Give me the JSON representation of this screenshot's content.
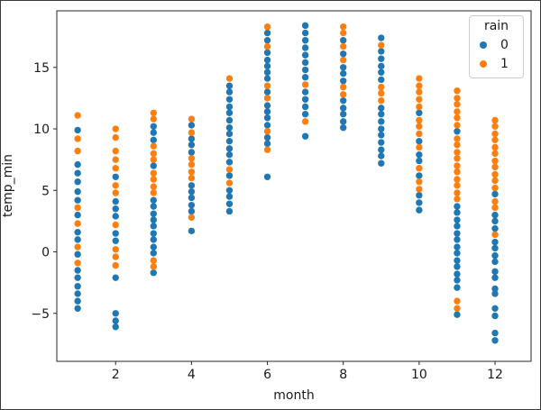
{
  "chart_data": {
    "type": "scatter",
    "title": "",
    "xlabel": "month",
    "ylabel": "temp_min",
    "xlim": [
      0.45,
      12.95
    ],
    "ylim": [
      -8.9,
      19.6
    ],
    "grid": false,
    "xticks": [
      2,
      4,
      6,
      8,
      10,
      12
    ],
    "xtick_labels": [
      "2",
      "4",
      "6",
      "8",
      "10",
      "12"
    ],
    "yticks": [
      -5,
      0,
      5,
      10,
      15
    ],
    "ytick_labels": [
      "−5",
      "0",
      "5",
      "10",
      "15"
    ],
    "legend": {
      "title": "rain",
      "position": "upper right",
      "entries": [
        {
          "label": "0",
          "color": "#1f77b4"
        },
        {
          "label": "1",
          "color": "#ff7f0e"
        }
      ]
    },
    "series": [
      {
        "name": "0",
        "color": "#1f77b4",
        "points": [
          [
            1,
            9.9
          ],
          [
            1,
            7.1
          ],
          [
            1,
            6.4
          ],
          [
            1,
            5.7
          ],
          [
            1,
            4.9
          ],
          [
            1,
            4.2
          ],
          [
            1,
            3.0
          ],
          [
            1,
            1.6
          ],
          [
            1,
            1.0
          ],
          [
            1,
            -0.2
          ],
          [
            1,
            -1.5
          ],
          [
            1,
            -2.1
          ],
          [
            1,
            -2.8
          ],
          [
            1,
            -3.4
          ],
          [
            1,
            -4.0
          ],
          [
            1,
            -4.6
          ],
          [
            2,
            6.1
          ],
          [
            2,
            4.1
          ],
          [
            2,
            3.5
          ],
          [
            2,
            2.9
          ],
          [
            2,
            1.5
          ],
          [
            2,
            0.9
          ],
          [
            2,
            -2.1
          ],
          [
            2,
            -5.0
          ],
          [
            2,
            -5.6
          ],
          [
            2,
            -6.1
          ],
          [
            3,
            10.2
          ],
          [
            3,
            9.7
          ],
          [
            3,
            9.1
          ],
          [
            3,
            7.0
          ],
          [
            3,
            4.2
          ],
          [
            3,
            3.7
          ],
          [
            3,
            3.1
          ],
          [
            3,
            2.6
          ],
          [
            3,
            2.1
          ],
          [
            3,
            1.5
          ],
          [
            3,
            1.0
          ],
          [
            3,
            0.4
          ],
          [
            3,
            -0.1
          ],
          [
            3,
            -1.7
          ],
          [
            4,
            10.3
          ],
          [
            4,
            9.2
          ],
          [
            4,
            8.7
          ],
          [
            4,
            8.1
          ],
          [
            4,
            5.4
          ],
          [
            4,
            4.9
          ],
          [
            4,
            4.4
          ],
          [
            4,
            3.8
          ],
          [
            4,
            3.3
          ],
          [
            4,
            1.7
          ],
          [
            5,
            13.5
          ],
          [
            5,
            13.0
          ],
          [
            5,
            12.4
          ],
          [
            5,
            11.8
          ],
          [
            5,
            11.3
          ],
          [
            5,
            10.7
          ],
          [
            5,
            10.1
          ],
          [
            5,
            9.6
          ],
          [
            5,
            9.0
          ],
          [
            5,
            8.4
          ],
          [
            5,
            7.9
          ],
          [
            5,
            7.3
          ],
          [
            5,
            6.2
          ],
          [
            5,
            5.0
          ],
          [
            5,
            4.5
          ],
          [
            5,
            3.9
          ],
          [
            5,
            3.3
          ],
          [
            6,
            17.8
          ],
          [
            6,
            17.2
          ],
          [
            6,
            16.2
          ],
          [
            6,
            15.6
          ],
          [
            6,
            15.1
          ],
          [
            6,
            14.6
          ],
          [
            6,
            14.1
          ],
          [
            6,
            13.0
          ],
          [
            6,
            11.9
          ],
          [
            6,
            11.4
          ],
          [
            6,
            10.9
          ],
          [
            6,
            10.3
          ],
          [
            6,
            9.3
          ],
          [
            6,
            8.8
          ],
          [
            6,
            6.1
          ],
          [
            7,
            18.4
          ],
          [
            7,
            17.8
          ],
          [
            7,
            17.2
          ],
          [
            7,
            16.6
          ],
          [
            7,
            16.0
          ],
          [
            7,
            15.4
          ],
          [
            7,
            14.8
          ],
          [
            7,
            14.2
          ],
          [
            7,
            13.0
          ],
          [
            7,
            12.4
          ],
          [
            7,
            11.8
          ],
          [
            7,
            11.2
          ],
          [
            7,
            9.4
          ],
          [
            8,
            17.2
          ],
          [
            8,
            16.1
          ],
          [
            8,
            15.0
          ],
          [
            8,
            14.5
          ],
          [
            8,
            13.9
          ],
          [
            8,
            12.3
          ],
          [
            8,
            11.7
          ],
          [
            8,
            11.2
          ],
          [
            8,
            10.6
          ],
          [
            8,
            10.1
          ],
          [
            9,
            17.4
          ],
          [
            9,
            16.3
          ],
          [
            9,
            15.7
          ],
          [
            9,
            15.1
          ],
          [
            9,
            14.6
          ],
          [
            9,
            14.0
          ],
          [
            9,
            11.7
          ],
          [
            9,
            11.2
          ],
          [
            9,
            10.6
          ],
          [
            9,
            10.0
          ],
          [
            9,
            9.5
          ],
          [
            9,
            8.9
          ],
          [
            9,
            8.3
          ],
          [
            9,
            7.8
          ],
          [
            9,
            7.2
          ],
          [
            10,
            11.3
          ],
          [
            10,
            9.0
          ],
          [
            10,
            7.9
          ],
          [
            10,
            7.4
          ],
          [
            10,
            6.2
          ],
          [
            10,
            4.6
          ],
          [
            10,
            4.0
          ],
          [
            10,
            3.4
          ],
          [
            11,
            9.8
          ],
          [
            11,
            3.7
          ],
          [
            11,
            3.2
          ],
          [
            11,
            2.6
          ],
          [
            11,
            2.1
          ],
          [
            11,
            1.5
          ],
          [
            11,
            1.0
          ],
          [
            11,
            0.4
          ],
          [
            11,
            -0.1
          ],
          [
            11,
            -0.7
          ],
          [
            11,
            -1.2
          ],
          [
            11,
            -1.8
          ],
          [
            11,
            -2.3
          ],
          [
            11,
            -2.9
          ],
          [
            11,
            -5.1
          ],
          [
            12,
            4.7
          ],
          [
            12,
            3.0
          ],
          [
            12,
            2.5
          ],
          [
            12,
            1.9
          ],
          [
            12,
            0.8
          ],
          [
            12,
            0.3
          ],
          [
            12,
            -0.3
          ],
          [
            12,
            -0.8
          ],
          [
            12,
            -1.6
          ],
          [
            12,
            -2.1
          ],
          [
            12,
            -3.0
          ],
          [
            12,
            -3.4
          ],
          [
            12,
            -4.6
          ],
          [
            12,
            -5.2
          ],
          [
            12,
            -6.6
          ],
          [
            12,
            -7.2
          ]
        ]
      },
      {
        "name": "1",
        "color": "#ff7f0e",
        "points": [
          [
            1,
            11.1
          ],
          [
            1,
            9.2
          ],
          [
            1,
            8.2
          ],
          [
            1,
            3.6
          ],
          [
            1,
            2.3
          ],
          [
            1,
            0.4
          ],
          [
            1,
            -0.9
          ],
          [
            2,
            10.0
          ],
          [
            2,
            9.3
          ],
          [
            2,
            8.2
          ],
          [
            2,
            7.5
          ],
          [
            2,
            6.8
          ],
          [
            2,
            5.4
          ],
          [
            2,
            4.8
          ],
          [
            2,
            2.2
          ],
          [
            2,
            0.2
          ],
          [
            2,
            -0.4
          ],
          [
            2,
            -1.1
          ],
          [
            3,
            11.3
          ],
          [
            3,
            10.8
          ],
          [
            3,
            8.6
          ],
          [
            3,
            8.0
          ],
          [
            3,
            7.5
          ],
          [
            3,
            6.4
          ],
          [
            3,
            5.9
          ],
          [
            3,
            5.3
          ],
          [
            3,
            4.8
          ],
          [
            3,
            -0.7
          ],
          [
            3,
            -1.2
          ],
          [
            4,
            10.8
          ],
          [
            4,
            9.7
          ],
          [
            4,
            7.6
          ],
          [
            4,
            7.1
          ],
          [
            4,
            6.5
          ],
          [
            4,
            6.0
          ],
          [
            4,
            2.8
          ],
          [
            5,
            14.1
          ],
          [
            5,
            6.7
          ],
          [
            5,
            5.6
          ],
          [
            6,
            18.3
          ],
          [
            6,
            16.7
          ],
          [
            6,
            13.5
          ],
          [
            6,
            12.5
          ],
          [
            6,
            9.8
          ],
          [
            6,
            8.3
          ],
          [
            7,
            13.6
          ],
          [
            7,
            10.6
          ],
          [
            8,
            18.3
          ],
          [
            8,
            17.8
          ],
          [
            8,
            16.7
          ],
          [
            8,
            15.6
          ],
          [
            8,
            13.4
          ],
          [
            8,
            12.8
          ],
          [
            9,
            16.8
          ],
          [
            9,
            13.4
          ],
          [
            9,
            12.9
          ],
          [
            9,
            12.3
          ],
          [
            10,
            14.1
          ],
          [
            10,
            13.5
          ],
          [
            10,
            13.0
          ],
          [
            10,
            12.4
          ],
          [
            10,
            11.8
          ],
          [
            10,
            10.7
          ],
          [
            10,
            10.2
          ],
          [
            10,
            9.6
          ],
          [
            10,
            8.5
          ],
          [
            10,
            6.8
          ],
          [
            10,
            5.7
          ],
          [
            10,
            5.1
          ],
          [
            11,
            13.1
          ],
          [
            11,
            12.5
          ],
          [
            11,
            12.0
          ],
          [
            11,
            11.4
          ],
          [
            11,
            10.9
          ],
          [
            11,
            10.3
          ],
          [
            11,
            9.2
          ],
          [
            11,
            8.7
          ],
          [
            11,
            8.1
          ],
          [
            11,
            7.6
          ],
          [
            11,
            7.0
          ],
          [
            11,
            6.5
          ],
          [
            11,
            5.9
          ],
          [
            11,
            5.4
          ],
          [
            11,
            4.8
          ],
          [
            11,
            4.3
          ],
          [
            11,
            -4.0
          ],
          [
            11,
            -4.6
          ],
          [
            12,
            10.7
          ],
          [
            12,
            10.2
          ],
          [
            12,
            9.6
          ],
          [
            12,
            9.1
          ],
          [
            12,
            8.5
          ],
          [
            12,
            8.0
          ],
          [
            12,
            7.4
          ],
          [
            12,
            6.9
          ],
          [
            12,
            6.3
          ],
          [
            12,
            5.8
          ],
          [
            12,
            5.2
          ],
          [
            12,
            4.1
          ],
          [
            12,
            3.6
          ],
          [
            12,
            1.4
          ]
        ]
      }
    ]
  }
}
